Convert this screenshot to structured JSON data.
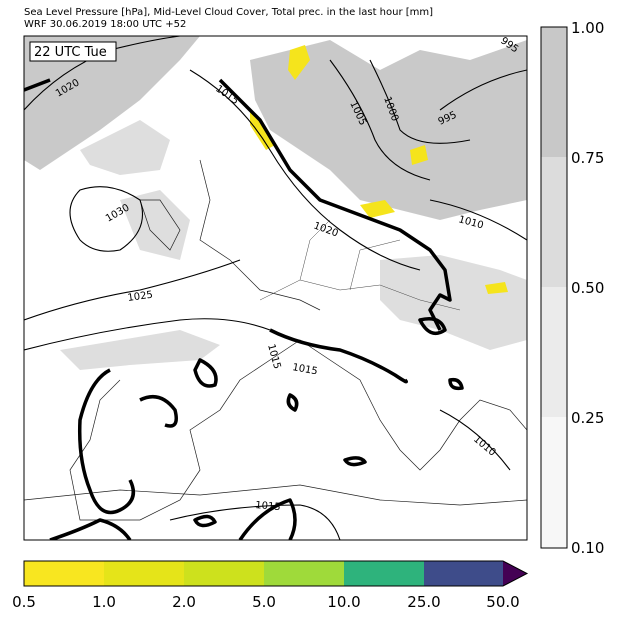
{
  "header": {
    "title": "Sea Level Pressure [hPa], Mid-Level Cloud Cover, Total prec. in the last hour [mm]",
    "subtitle": "WRF 30.06.2019 18:00 UTC +52"
  },
  "map": {
    "time_label": "22 UTC Tue",
    "isobar_labels": [
      "1020",
      "1015",
      "1005",
      "1000",
      "995",
      "995",
      "1030",
      "1020",
      "1010",
      "1025",
      "1015",
      "1015",
      "1010",
      "1015"
    ]
  },
  "cloud_colorbar": {
    "labels": [
      "1.00",
      "0.75",
      "0.50",
      "0.25",
      "0.10"
    ]
  },
  "precip_colorbar": {
    "labels": [
      "0.5",
      "1.0",
      "2.0",
      "5.0",
      "10.0",
      "25.0",
      "50.0"
    ]
  }
}
